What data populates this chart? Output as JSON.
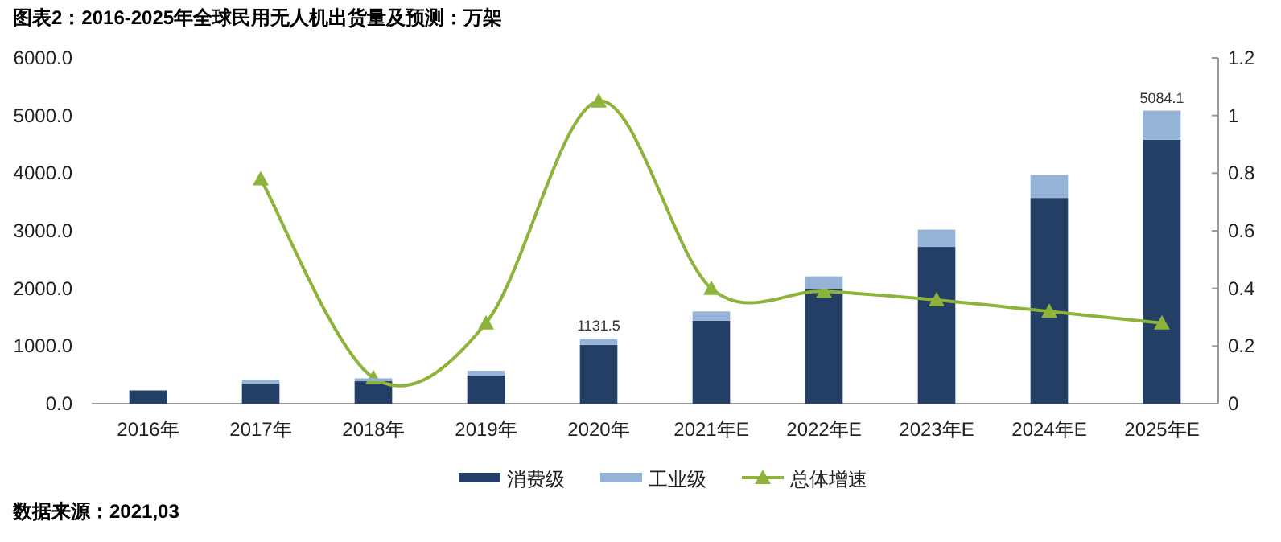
{
  "chart_data": {
    "type": "bar",
    "title": "图表2：2016-2025年全球民用无人机出货量及预测：万架",
    "categories": [
      "2016年",
      "2017年",
      "2018年",
      "2019年",
      "2020年",
      "2021年E",
      "2022年E",
      "2023年E",
      "2024年E",
      "2025年E"
    ],
    "stacked": true,
    "series": [
      {
        "name": "消费级",
        "color": "#243f66",
        "values": [
          230,
          350,
          390,
          490,
          1020,
          1440,
          1990,
          2720,
          3570,
          4580
        ]
      },
      {
        "name": "工业级",
        "color": "#95b3d7",
        "values": [
          0,
          60,
          50,
          80,
          111.5,
          160,
          220,
          300,
          400,
          504.1
        ]
      },
      {
        "name": "总体增速",
        "type": "line",
        "axis": "y2",
        "color": "#8db33a",
        "marker": "triangle",
        "values": [
          null,
          0.78,
          0.09,
          0.28,
          1.05,
          0.4,
          0.39,
          0.36,
          0.32,
          0.28
        ]
      }
    ],
    "totals": [
      null,
      null,
      null,
      null,
      "1131.5",
      null,
      null,
      null,
      null,
      "5084.1"
    ],
    "ylim": [
      0,
      6000
    ],
    "yticks": [
      {
        "value": 0,
        "label": "0.0"
      },
      {
        "value": 1000,
        "label": "1000.0"
      },
      {
        "value": 2000,
        "label": "2000.0"
      },
      {
        "value": 3000,
        "label": "3000.0"
      },
      {
        "value": 4000,
        "label": "4000.0"
      },
      {
        "value": 5000,
        "label": "5000.0"
      },
      {
        "value": 6000,
        "label": "6000.0"
      }
    ],
    "y2lim": [
      0,
      1.2
    ],
    "y2ticks": [
      0,
      0.2,
      0.4,
      0.6,
      0.8,
      1,
      1.2
    ],
    "legend": "bottom",
    "grid": false,
    "annotations": [
      "数据来源：2021,03"
    ]
  }
}
